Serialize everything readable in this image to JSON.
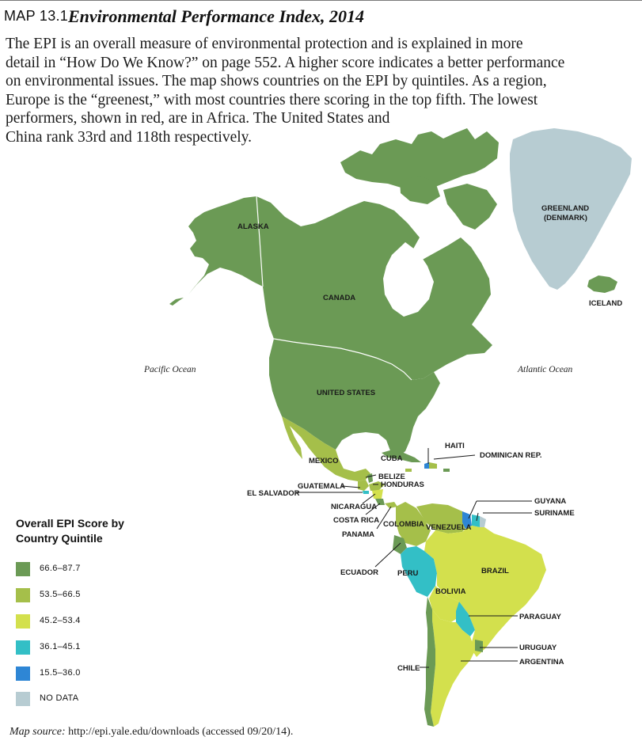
{
  "header": {
    "map_number": "MAP 13.1",
    "title": "Environmental Performance Index, 2014"
  },
  "description": {
    "lines": [
      "The EPI is an overall measure of environmental protection and is explained in more",
      "detail in “How Do We Know?” on page 552. A higher score indicates a better performance",
      "on environmental issues. The map shows countries on the EPI by quintiles. As a region,",
      "Europe is the “greenest,” with most countries there scoring in the top fifth. The lowest",
      "performers, shown in red, are in Africa. The United States and",
      "China rank 33rd and 118th respectively."
    ]
  },
  "oceans": {
    "pacific": "Pacific Ocean",
    "atlantic": "Atlantic Ocean"
  },
  "countries": {
    "alaska": "ALASKA",
    "canada": "CANADA",
    "greenland_1": "GREENLAND",
    "greenland_2": "(DENMARK)",
    "iceland": "ICELAND",
    "united_states": "UNITED STATES",
    "mexico": "MEXICO",
    "cuba": "CUBA",
    "haiti": "HAITI",
    "dominican_rep": "DOMINICAN REP.",
    "belize": "BELIZE",
    "honduras": "HONDURAS",
    "guatemala": "GUATEMALA",
    "el_salvador": "EL SALVADOR",
    "nicaragua": "NICARAGUA",
    "costa_rica": "COSTA RICA",
    "panama": "PANAMA",
    "venezuela": "VENEZUELA",
    "guyana": "GUYANA",
    "suriname": "SURINAME",
    "colombia": "COLOMBIA",
    "ecuador": "ECUADOR",
    "peru": "PERU",
    "brazil": "BRAZIL",
    "bolivia": "BOLIVIA",
    "paraguay": "PARAGUAY",
    "uruguay": "URUGUAY",
    "argentina": "ARGENTINA",
    "chile": "CHILE"
  },
  "legend": {
    "title_line1": "Overall EPI Score by",
    "title_line2": "Country Quintile",
    "items": [
      {
        "label": "66.6–87.7",
        "color": "#6b9a55"
      },
      {
        "label": "53.5–66.5",
        "color": "#a5bf4a"
      },
      {
        "label": "45.2–53.4",
        "color": "#d3e04d"
      },
      {
        "label": "36.1–45.1",
        "color": "#33bfc6"
      },
      {
        "label": "15.5–36.0",
        "color": "#2e86d5"
      },
      {
        "label": "NO DATA",
        "color": "#b7ccd2"
      }
    ]
  },
  "source": {
    "label": "Map source:",
    "text": " http://epi.yale.edu/downloads (accessed 09/20/14)."
  }
}
